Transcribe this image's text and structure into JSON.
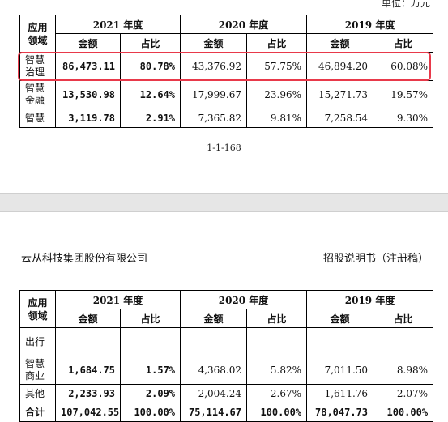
{
  "top": {
    "unit_note": "单位：万元",
    "table": {
      "domain_header": [
        "应用",
        "领域"
      ],
      "years": [
        "2021 年度",
        "2020 年度",
        "2019 年度"
      ],
      "sub_headers": [
        "金额",
        "占比"
      ],
      "rows": [
        {
          "domain": [
            "智慧",
            "治理"
          ],
          "cells": [
            "86,473.11",
            "80.78%",
            "43,376.92",
            "57.75%",
            "46,894.20",
            "60.08%"
          ]
        },
        {
          "domain": [
            "智慧",
            "金融"
          ],
          "cells": [
            "13,530.98",
            "12.64%",
            "17,999.67",
            "23.96%",
            "15,271.73",
            "19.57%"
          ]
        },
        {
          "domain": [
            "智慧"
          ],
          "cells": [
            "3,119.78",
            "2.91%",
            "7,365.82",
            "9.81%",
            "7,258.54",
            "9.30%"
          ]
        }
      ]
    },
    "page_number": "1-1-168"
  },
  "bottom": {
    "company": "云从科技集团股份有限公司",
    "doc_title": "招股说明书（注册稿）",
    "table": {
      "domain_header": [
        "应用",
        "领域"
      ],
      "years": [
        "2021 年度",
        "2020 年度",
        "2019 年度"
      ],
      "sub_headers": [
        "金额",
        "占比"
      ],
      "rows": [
        {
          "domain": [
            "出行"
          ],
          "cells": [
            "",
            "",
            "",
            "",
            "",
            ""
          ]
        },
        {
          "domain": [
            "智慧",
            "商业"
          ],
          "cells": [
            "1,684.75",
            "1.57%",
            "4,368.02",
            "5.82%",
            "7,011.50",
            "8.98%"
          ]
        },
        {
          "domain": [
            "其他"
          ],
          "cells": [
            "2,233.93",
            "2.09%",
            "2,004.24",
            "2.67%",
            "1,611.76",
            "2.07%"
          ]
        },
        {
          "domain": [
            "合计"
          ],
          "cells": [
            "107,042.55",
            "100.00%",
            "75,114.67",
            "100.00%",
            "78,047.73",
            "100.00%"
          ]
        }
      ]
    }
  }
}
